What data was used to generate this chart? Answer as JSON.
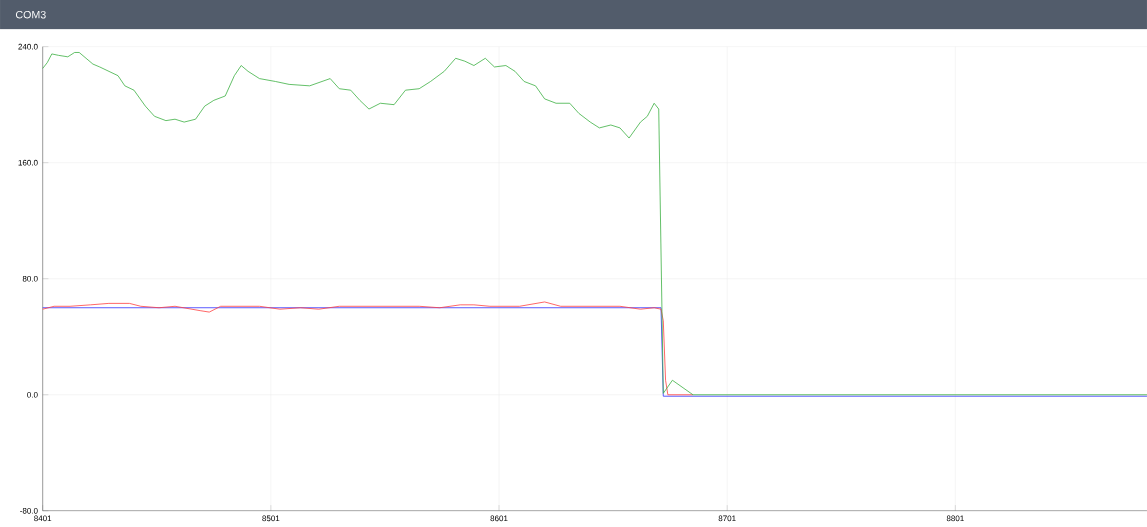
{
  "chart_data": {
    "type": "line",
    "title": "COM3",
    "grid": true,
    "xlim": [
      8401,
      8885
    ],
    "ylim": [
      -80,
      240
    ],
    "xticks": [
      8401,
      8501,
      8601,
      8701,
      8801
    ],
    "yticks": [
      {
        "value": -80,
        "label": "-80.0"
      },
      {
        "value": 0,
        "label": "0.0"
      },
      {
        "value": 80,
        "label": "80.0"
      },
      {
        "value": 160,
        "label": "160.0"
      },
      {
        "value": 240,
        "label": "240.0"
      }
    ],
    "series": [
      {
        "color": "#3030ff",
        "x": [
          8401,
          8672,
          8673,
          8885
        ],
        "values": [
          60,
          60,
          -1,
          -1
        ]
      },
      {
        "color": "#ff4040",
        "x": [
          8401,
          8406,
          8413,
          8422,
          8430,
          8439,
          8444,
          8452,
          8459,
          8470,
          8474,
          8479,
          8487,
          8496,
          8505,
          8514,
          8522,
          8531,
          8540,
          8549,
          8558,
          8566,
          8575,
          8584,
          8590,
          8597,
          8604,
          8610,
          8621,
          8628,
          8636,
          8645,
          8654,
          8663,
          8669,
          8672,
          8673,
          8674,
          8675,
          8686
        ],
        "values": [
          59,
          61,
          61,
          62,
          63,
          63,
          61,
          60,
          61,
          58,
          57,
          61,
          61,
          61,
          59,
          60,
          59,
          61,
          61,
          61,
          61,
          61,
          60,
          62,
          62,
          61,
          61,
          61,
          64,
          61,
          61,
          61,
          61,
          59,
          60,
          59,
          51,
          10,
          0,
          0
        ]
      },
      {
        "color": "#3cb043",
        "x": [
          8401,
          8403,
          8405,
          8408,
          8412,
          8415,
          8417,
          8420,
          8423,
          8426,
          8430,
          8434,
          8437,
          8441,
          8446,
          8450,
          8455,
          8459,
          8463,
          8468,
          8472,
          8476,
          8481,
          8485,
          8488,
          8491,
          8496,
          8503,
          8509,
          8518,
          8527,
          8531,
          8536,
          8540,
          8544,
          8549,
          8555,
          8560,
          8566,
          8571,
          8577,
          8582,
          8586,
          8590,
          8595,
          8599,
          8604,
          8608,
          8612,
          8617,
          8621,
          8626,
          8632,
          8636,
          8641,
          8645,
          8650,
          8654,
          8658,
          8663,
          8666,
          8669,
          8671,
          8673,
          8677,
          8686,
          8885
        ],
        "values": [
          225,
          229,
          235,
          234,
          233,
          236,
          236,
          232,
          228,
          226,
          223,
          220,
          213,
          210,
          199,
          192,
          189,
          190,
          188,
          190,
          199,
          203,
          206,
          220,
          227,
          223,
          218,
          216,
          214,
          213,
          218,
          211,
          210,
          203,
          197,
          201,
          200,
          210,
          211,
          216,
          223,
          232,
          230,
          227,
          232,
          226,
          227,
          223,
          216,
          213,
          204,
          201,
          201,
          194,
          188,
          184,
          186,
          184,
          177,
          188,
          192,
          201,
          197,
          1,
          10,
          0,
          0
        ]
      }
    ]
  }
}
